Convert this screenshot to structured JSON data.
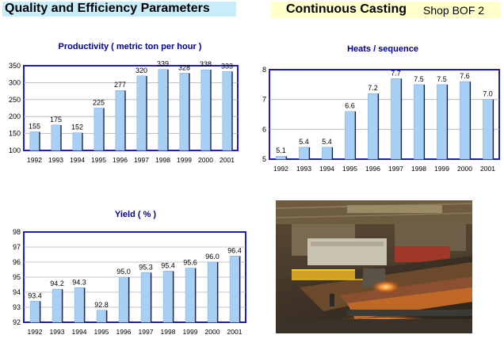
{
  "header": {
    "left_title": "Quality and Efficiency Parameters",
    "right_title": "Continuous Casting",
    "right_subtitle": "Shop BOF 2"
  },
  "photo": {
    "subject": "steel-plant-photo"
  },
  "chart_data": [
    {
      "id": "productivity",
      "type": "bar",
      "title": "Productivity ( metric ton per hour )",
      "categories": [
        "1992",
        "1993",
        "1994",
        "1995",
        "1996",
        "1997",
        "1998",
        "1999",
        "2000",
        "2001"
      ],
      "values": [
        155,
        175,
        152,
        225,
        277,
        320,
        339,
        328,
        338,
        333
      ],
      "labels": [
        "155",
        "175",
        "152",
        "225",
        "277",
        "320",
        "339",
        "328",
        "338",
        "333"
      ],
      "ylim": [
        100,
        350
      ],
      "yticks": [
        100,
        150,
        200,
        250,
        300,
        350
      ],
      "grid": true,
      "xlabel": "",
      "ylabel": ""
    },
    {
      "id": "heats",
      "type": "bar",
      "title": "Heats / sequence",
      "categories": [
        "1992",
        "1993",
        "1994",
        "1995",
        "1996",
        "1997",
        "1998",
        "1999",
        "2000",
        "2001"
      ],
      "values": [
        5.1,
        5.4,
        5.4,
        6.6,
        7.2,
        7.7,
        7.5,
        7.5,
        7.6,
        7.0
      ],
      "labels": [
        "5.1",
        "5.4",
        "5.4",
        "6.6",
        "7.2",
        "7.7",
        "7.5",
        "7.5",
        "7.6",
        "7.0"
      ],
      "ylim": [
        5,
        8
      ],
      "yticks": [
        5,
        6,
        7,
        8
      ],
      "grid": true,
      "xlabel": "",
      "ylabel": ""
    },
    {
      "id": "yield",
      "type": "bar",
      "title": "Yield ( % )",
      "categories": [
        "1992",
        "1993",
        "1994",
        "1995",
        "1996",
        "1997",
        "1998",
        "1999",
        "2000",
        "2001"
      ],
      "values": [
        93.4,
        94.2,
        94.3,
        92.8,
        95.0,
        95.3,
        95.4,
        95.6,
        96.0,
        96.4
      ],
      "labels": [
        "93.4",
        "94.2",
        "94.3",
        "92.8",
        "95.0",
        "95.3",
        "95.4",
        "95.6",
        "96.0",
        "96.4"
      ],
      "ylim": [
        92,
        98
      ],
      "yticks": [
        92,
        93,
        94,
        95,
        96,
        97,
        98
      ],
      "grid": true,
      "xlabel": "",
      "ylabel": ""
    }
  ]
}
